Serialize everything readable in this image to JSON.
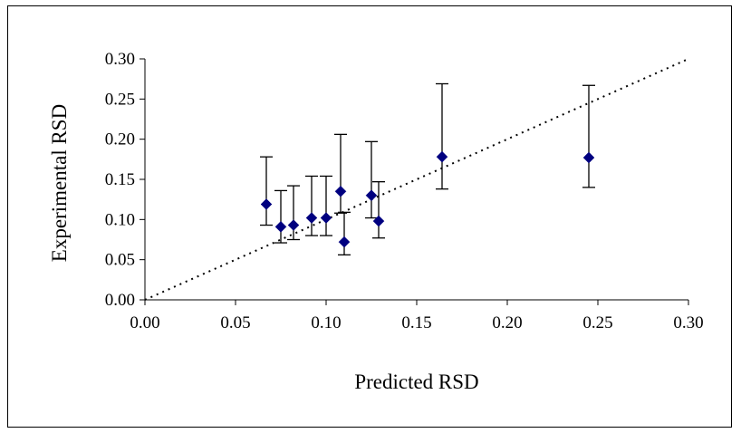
{
  "chart_data": {
    "type": "scatter",
    "title": "",
    "xlabel": "Predicted RSD",
    "ylabel": "Experimental RSD",
    "xlim": [
      0,
      0.3
    ],
    "ylim": [
      0,
      0.3
    ],
    "x_ticks": [
      "0.00",
      "0.05",
      "0.10",
      "0.15",
      "0.20",
      "0.25",
      "0.30"
    ],
    "y_ticks": [
      "0.00",
      "0.05",
      "0.10",
      "0.15",
      "0.20",
      "0.25",
      "0.30"
    ],
    "grid": false,
    "legend": "none",
    "marker_color": "#000080",
    "reference_line": {
      "style": "dotted",
      "from": [
        0,
        0
      ],
      "to": [
        0.3,
        0.3
      ]
    },
    "points": [
      {
        "x": 0.067,
        "y": 0.119,
        "err_low": 0.093,
        "err_high": 0.178
      },
      {
        "x": 0.075,
        "y": 0.091,
        "err_low": 0.071,
        "err_high": 0.136
      },
      {
        "x": 0.082,
        "y": 0.093,
        "err_low": 0.075,
        "err_high": 0.142
      },
      {
        "x": 0.092,
        "y": 0.102,
        "err_low": 0.08,
        "err_high": 0.154
      },
      {
        "x": 0.1,
        "y": 0.102,
        "err_low": 0.08,
        "err_high": 0.154
      },
      {
        "x": 0.108,
        "y": 0.135,
        "err_low": 0.108,
        "err_high": 0.206
      },
      {
        "x": 0.11,
        "y": 0.072,
        "err_low": 0.056,
        "err_high": 0.109
      },
      {
        "x": 0.125,
        "y": 0.13,
        "err_low": 0.102,
        "err_high": 0.197
      },
      {
        "x": 0.129,
        "y": 0.098,
        "err_low": 0.077,
        "err_high": 0.147
      },
      {
        "x": 0.164,
        "y": 0.178,
        "err_low": 0.138,
        "err_high": 0.269
      },
      {
        "x": 0.245,
        "y": 0.177,
        "err_low": 0.14,
        "err_high": 0.267
      }
    ]
  }
}
